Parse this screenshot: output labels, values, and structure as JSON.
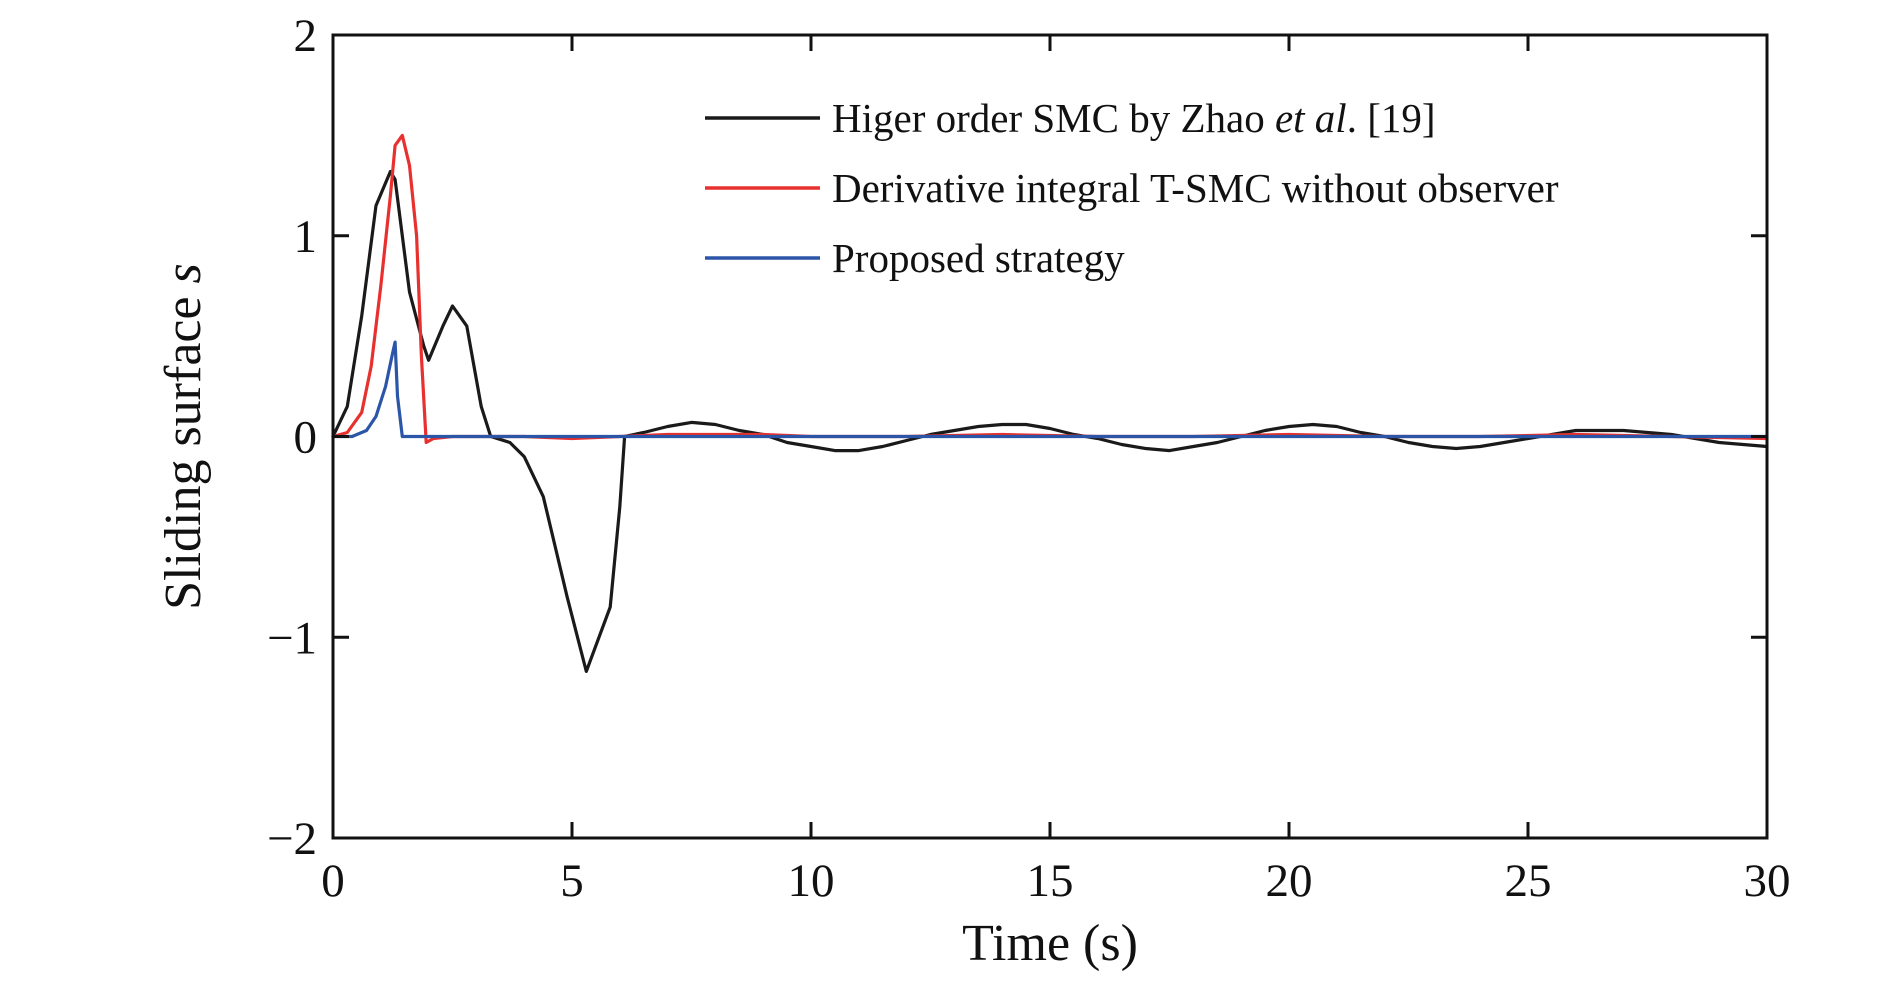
{
  "chart_data": {
    "type": "line",
    "xlabel": "Time (s)",
    "ylabel_main": "Sliding surface ",
    "ylabel_var": "s",
    "xlim": [
      0,
      30
    ],
    "ylim": [
      -2,
      2
    ],
    "x_ticks": [
      0,
      5,
      10,
      15,
      20,
      25,
      30
    ],
    "x_tick_labels": [
      "0",
      "5",
      "10",
      "15",
      "20",
      "25",
      "30"
    ],
    "y_ticks": [
      2,
      1,
      0,
      -1,
      -2
    ],
    "y_tick_labels": [
      "2",
      "1",
      "0",
      "−1",
      "−2"
    ],
    "grid": false,
    "legend_position": "top-right",
    "series": [
      {
        "legend_parts": [
          {
            "text": "Higer order SMC by Zhao ",
            "italic": false
          },
          {
            "text": "et al",
            "italic": true
          },
          {
            "text": ". [19]",
            "italic": false
          }
        ],
        "color": "#1a1a1a",
        "x": [
          0,
          0.3,
          0.6,
          0.9,
          1.2,
          1.3,
          1.6,
          1.9,
          2.0,
          2.3,
          2.5,
          2.8,
          3.1,
          3.3,
          3.7,
          4.0,
          4.4,
          4.9,
          5.3,
          5.8,
          6.0,
          6.1,
          6.5,
          7.0,
          7.5,
          8.0,
          8.5,
          9.0,
          9.5,
          10.0,
          10.5,
          11.0,
          11.5,
          12.0,
          12.5,
          13.0,
          13.5,
          14.0,
          14.5,
          15.0,
          15.5,
          16.0,
          16.5,
          17.0,
          17.5,
          18.0,
          18.5,
          19.0,
          19.5,
          20.0,
          20.5,
          21.0,
          21.5,
          22.0,
          22.5,
          23.0,
          23.5,
          24.0,
          24.5,
          25.0,
          25.5,
          26.0,
          26.5,
          27.0,
          27.5,
          28.0,
          28.5,
          29.0,
          29.5,
          30.0
        ],
        "y": [
          0,
          0.15,
          0.6,
          1.15,
          1.32,
          1.28,
          0.72,
          0.45,
          0.38,
          0.55,
          0.65,
          0.55,
          0.15,
          0.0,
          -0.03,
          -0.1,
          -0.3,
          -0.8,
          -1.17,
          -0.85,
          -0.35,
          0.0,
          0.02,
          0.05,
          0.07,
          0.06,
          0.03,
          0.01,
          -0.03,
          -0.05,
          -0.07,
          -0.07,
          -0.05,
          -0.02,
          0.01,
          0.03,
          0.05,
          0.06,
          0.06,
          0.04,
          0.01,
          -0.01,
          -0.04,
          -0.06,
          -0.07,
          -0.05,
          -0.03,
          0.0,
          0.03,
          0.05,
          0.06,
          0.05,
          0.02,
          0.0,
          -0.03,
          -0.05,
          -0.06,
          -0.05,
          -0.03,
          -0.01,
          0.01,
          0.03,
          0.03,
          0.03,
          0.02,
          0.01,
          -0.01,
          -0.03,
          -0.04,
          -0.05
        ]
      },
      {
        "legend_parts": [
          {
            "text": "Derivative integral T-SMC without observer",
            "italic": false
          }
        ],
        "color": "#e8312f",
        "x": [
          0,
          0.3,
          0.6,
          0.8,
          1.0,
          1.2,
          1.3,
          1.45,
          1.6,
          1.75,
          1.85,
          1.95,
          2.1,
          2.5,
          3.0,
          4.0,
          5.0,
          6.0,
          7.0,
          8.0,
          9.0,
          10.0,
          12.0,
          14.0,
          16.0,
          18.0,
          20.0,
          22.0,
          24.0,
          26.0,
          28.0,
          30.0
        ],
        "y": [
          0,
          0.02,
          0.12,
          0.35,
          0.75,
          1.2,
          1.45,
          1.5,
          1.35,
          1.0,
          0.4,
          -0.03,
          -0.01,
          0.0,
          0.0,
          0.0,
          -0.01,
          0.0,
          0.01,
          0.01,
          0.01,
          0.0,
          0.0,
          0.01,
          0.0,
          0.0,
          0.01,
          0.0,
          0.0,
          0.01,
          0.0,
          -0.01
        ]
      },
      {
        "legend_parts": [
          {
            "text": "Proposed strategy",
            "italic": false
          }
        ],
        "color": "#2b56a8",
        "x": [
          0,
          0.4,
          0.7,
          0.9,
          1.1,
          1.25,
          1.3,
          1.35,
          1.45,
          2.0,
          3.0,
          5.0,
          7.0,
          9.0,
          11.0,
          13.0,
          15.0,
          17.0,
          19.0,
          21.0,
          23.0,
          25.0,
          27.0,
          29.0,
          30.0
        ],
        "y": [
          0,
          0.0,
          0.03,
          0.1,
          0.25,
          0.42,
          0.47,
          0.2,
          0.0,
          0.0,
          0.0,
          0.0,
          0.0,
          0.0,
          0.0,
          0.0,
          0.0,
          0.0,
          0.0,
          0.0,
          0.0,
          0.0,
          0.0,
          0.0,
          0.0
        ]
      }
    ]
  }
}
